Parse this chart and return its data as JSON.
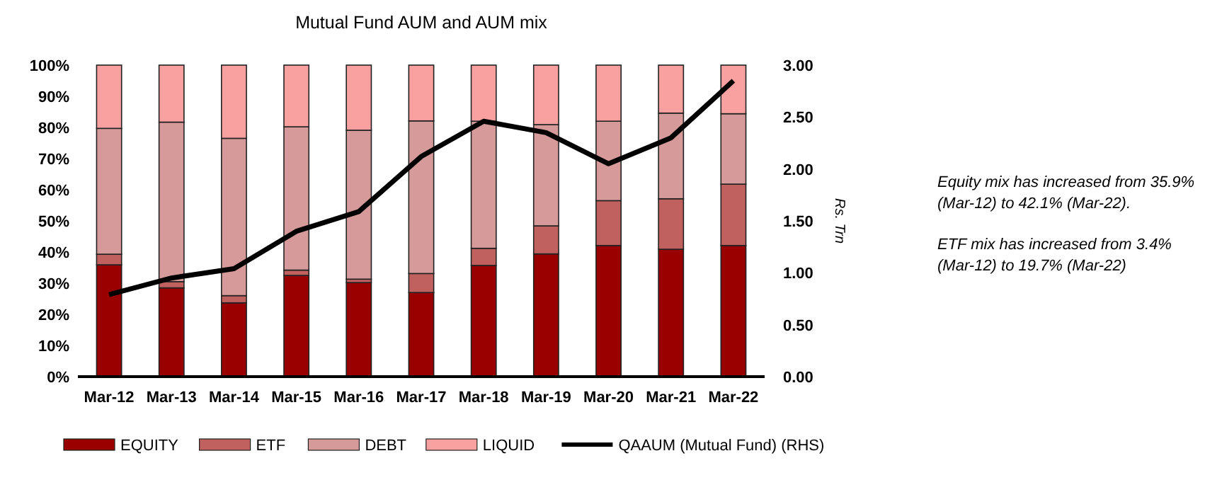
{
  "chart_data": {
    "type": "bar",
    "title": "Mutual Fund AUM and AUM mix",
    "y2label": "Rs. Trn",
    "stacked": true,
    "categories": [
      "Mar-12",
      "Mar-13",
      "Mar-14",
      "Mar-15",
      "Mar-16",
      "Mar-17",
      "Mar-18",
      "Mar-19",
      "Mar-20",
      "Mar-21",
      "Mar-22"
    ],
    "series": [
      {
        "name": "EQUITY",
        "color": "#990000",
        "values": [
          35.9,
          28.5,
          23.7,
          32.5,
          30.2,
          27.0,
          35.7,
          39.4,
          42.1,
          40.9,
          42.1
        ]
      },
      {
        "name": "ETF",
        "color": "#c0605f",
        "values": [
          3.4,
          2.0,
          2.3,
          1.7,
          1.1,
          6.1,
          5.5,
          9.0,
          14.4,
          16.2,
          19.7
        ]
      },
      {
        "name": "DEBT",
        "color": "#d59a99",
        "values": [
          40.4,
          51.2,
          50.5,
          46.0,
          47.8,
          49.0,
          40.8,
          32.5,
          25.5,
          27.5,
          22.6
        ]
      },
      {
        "name": "LIQUID",
        "color": "#f9a0a0",
        "values": [
          20.3,
          18.3,
          23.5,
          19.8,
          20.9,
          17.9,
          18.0,
          19.1,
          18.0,
          15.4,
          15.6
        ]
      },
      {
        "name": "QAAUM (Mutual Fund) (RHS)",
        "type": "line",
        "axis": "y2",
        "color": "#000000",
        "values": [
          0.79,
          0.95,
          1.04,
          1.4,
          1.59,
          2.12,
          2.46,
          2.35,
          2.05,
          2.3,
          2.85
        ]
      }
    ],
    "ylim": [
      0,
      100
    ],
    "yticks": [
      {
        "value": 0,
        "label": "0%"
      },
      {
        "value": 10,
        "label": "10%"
      },
      {
        "value": 20,
        "label": "20%"
      },
      {
        "value": 30,
        "label": "30%"
      },
      {
        "value": 40,
        "label": "40%"
      },
      {
        "value": 50,
        "label": "50%"
      },
      {
        "value": 60,
        "label": "60%"
      },
      {
        "value": 70,
        "label": "70%"
      },
      {
        "value": 80,
        "label": "80%"
      },
      {
        "value": 90,
        "label": "90%"
      },
      {
        "value": 100,
        "label": "100%"
      }
    ],
    "y2lim": [
      0,
      3
    ],
    "y2ticks": [
      {
        "value": 0,
        "label": "0.00"
      },
      {
        "value": 0.5,
        "label": "0.50"
      },
      {
        "value": 1,
        "label": "1.00"
      },
      {
        "value": 1.5,
        "label": "1.50"
      },
      {
        "value": 2,
        "label": "2.00"
      },
      {
        "value": 2.5,
        "label": "2.50"
      },
      {
        "value": 3,
        "label": "3.00"
      }
    ],
    "legend": "bottom",
    "grid": false,
    "annotations": [
      "Equity mix has increased from 35.9% (Mar-12) to 42.1% (Mar-22).",
      "ETF mix has increased from 3.4% (Mar-12) to 19.7% (Mar-22)"
    ]
  }
}
